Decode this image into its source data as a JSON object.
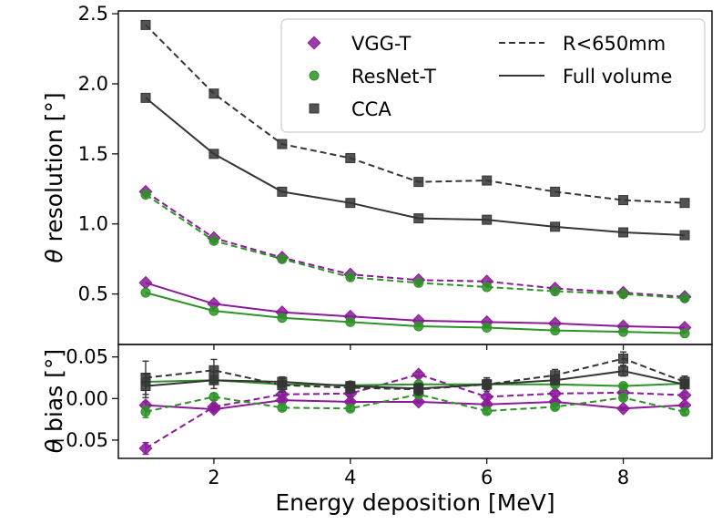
{
  "chart_data": [
    {
      "type": "line",
      "panel": "top",
      "ylabel_symbol": "θ",
      "ylabel_text": "resolution [°]",
      "xlim": [
        0.6,
        9.3
      ],
      "ylim": [
        0.14,
        2.52
      ],
      "yticks": [
        "0.5",
        "1.0",
        "1.5",
        "2.0",
        "2.5"
      ],
      "x": [
        1,
        2,
        3,
        4,
        5,
        6,
        7,
        8,
        8.9
      ],
      "series": [
        {
          "name": "VGG-T",
          "linestyle": "dashed",
          "values": [
            1.23,
            0.9,
            0.76,
            0.64,
            0.6,
            0.59,
            0.54,
            0.51,
            0.48
          ]
        },
        {
          "name": "VGG-T",
          "linestyle": "solid",
          "values": [
            0.58,
            0.43,
            0.37,
            0.34,
            0.31,
            0.3,
            0.29,
            0.27,
            0.26
          ]
        },
        {
          "name": "ResNet-T",
          "linestyle": "dashed",
          "values": [
            1.21,
            0.88,
            0.75,
            0.62,
            0.58,
            0.55,
            0.52,
            0.5,
            0.47
          ]
        },
        {
          "name": "ResNet-T",
          "linestyle": "solid",
          "values": [
            0.51,
            0.38,
            0.33,
            0.3,
            0.27,
            0.26,
            0.24,
            0.23,
            0.22
          ]
        },
        {
          "name": "CCA",
          "linestyle": "dashed",
          "values": [
            2.42,
            1.93,
            1.57,
            1.47,
            1.3,
            1.31,
            1.23,
            1.17,
            1.15
          ]
        },
        {
          "name": "CCA",
          "linestyle": "solid",
          "values": [
            1.9,
            1.5,
            1.23,
            1.15,
            1.04,
            1.03,
            0.98,
            0.94,
            0.92
          ]
        }
      ]
    },
    {
      "type": "line",
      "panel": "bottom",
      "ylabel_symbol": "θ",
      "ylabel_text": "bias [°]",
      "xlabel": "Energy deposition [MeV]",
      "xlim": [
        0.6,
        9.3
      ],
      "ylim": [
        -0.072,
        0.065
      ],
      "yticks": [
        "−0.05",
        "0.00",
        "0.05"
      ],
      "xticks": [
        "2",
        "4",
        "6",
        "8"
      ],
      "x": [
        1,
        2,
        3,
        4,
        5,
        6,
        7,
        8,
        8.9
      ],
      "series": [
        {
          "name": "VGG-T",
          "linestyle": "dashed",
          "values": [
            -0.06,
            -0.01,
            0.005,
            0.006,
            0.029,
            0.002,
            0.006,
            0.007,
            0.004
          ],
          "errors": [
            0.007,
            0.004,
            0.003,
            0.003,
            0.003,
            0.003,
            0.003,
            0.003,
            0.003
          ]
        },
        {
          "name": "VGG-T",
          "linestyle": "solid",
          "values": [
            -0.008,
            -0.013,
            -0.002,
            -0.004,
            -0.004,
            -0.007,
            -0.004,
            -0.012,
            -0.008
          ],
          "errors": [
            0.004,
            0.003,
            0.002,
            0.002,
            0.002,
            0.002,
            0.002,
            0.002,
            0.002
          ]
        },
        {
          "name": "ResNet-T",
          "linestyle": "dashed",
          "values": [
            -0.016,
            0.002,
            -0.011,
            -0.012,
            0.005,
            -0.015,
            -0.01,
            0.001,
            -0.016
          ],
          "errors": [
            0.007,
            0.004,
            0.003,
            0.003,
            0.003,
            0.003,
            0.003,
            0.003,
            0.003
          ]
        },
        {
          "name": "ResNet-T",
          "linestyle": "solid",
          "values": [
            0.02,
            0.022,
            0.017,
            0.016,
            0.017,
            0.017,
            0.017,
            0.015,
            0.018
          ],
          "errors": [
            0.004,
            0.003,
            0.002,
            0.002,
            0.002,
            0.002,
            0.002,
            0.002,
            0.002
          ]
        },
        {
          "name": "CCA",
          "linestyle": "dashed",
          "values": [
            0.025,
            0.034,
            0.016,
            0.013,
            0.011,
            0.017,
            0.028,
            0.048,
            0.02
          ],
          "errors": [
            0.02,
            0.013,
            0.008,
            0.007,
            0.007,
            0.008,
            0.007,
            0.008,
            0.007
          ]
        },
        {
          "name": "CCA",
          "linestyle": "solid",
          "values": [
            0.015,
            0.022,
            0.02,
            0.015,
            0.012,
            0.017,
            0.022,
            0.033,
            0.017
          ],
          "errors": [
            0.014,
            0.01,
            0.006,
            0.005,
            0.005,
            0.006,
            0.005,
            0.006,
            0.005
          ]
        }
      ]
    }
  ],
  "colors": {
    "VGG-T": "#8b1a99",
    "ResNet-T": "#2d9326",
    "CCA": "#353535"
  },
  "markers": {
    "VGG-T": "diamond",
    "ResNet-T": "circle",
    "CCA": "square"
  },
  "legend": {
    "placement": "top-right",
    "markers": [
      {
        "label": "VGG-T",
        "series": "VGG-T"
      },
      {
        "label": "ResNet-T",
        "series": "ResNet-T"
      },
      {
        "label": "CCA",
        "series": "CCA"
      }
    ],
    "lines": [
      {
        "label": "R<650mm",
        "linestyle": "dashed"
      },
      {
        "label": "Full volume",
        "linestyle": "solid"
      }
    ]
  }
}
